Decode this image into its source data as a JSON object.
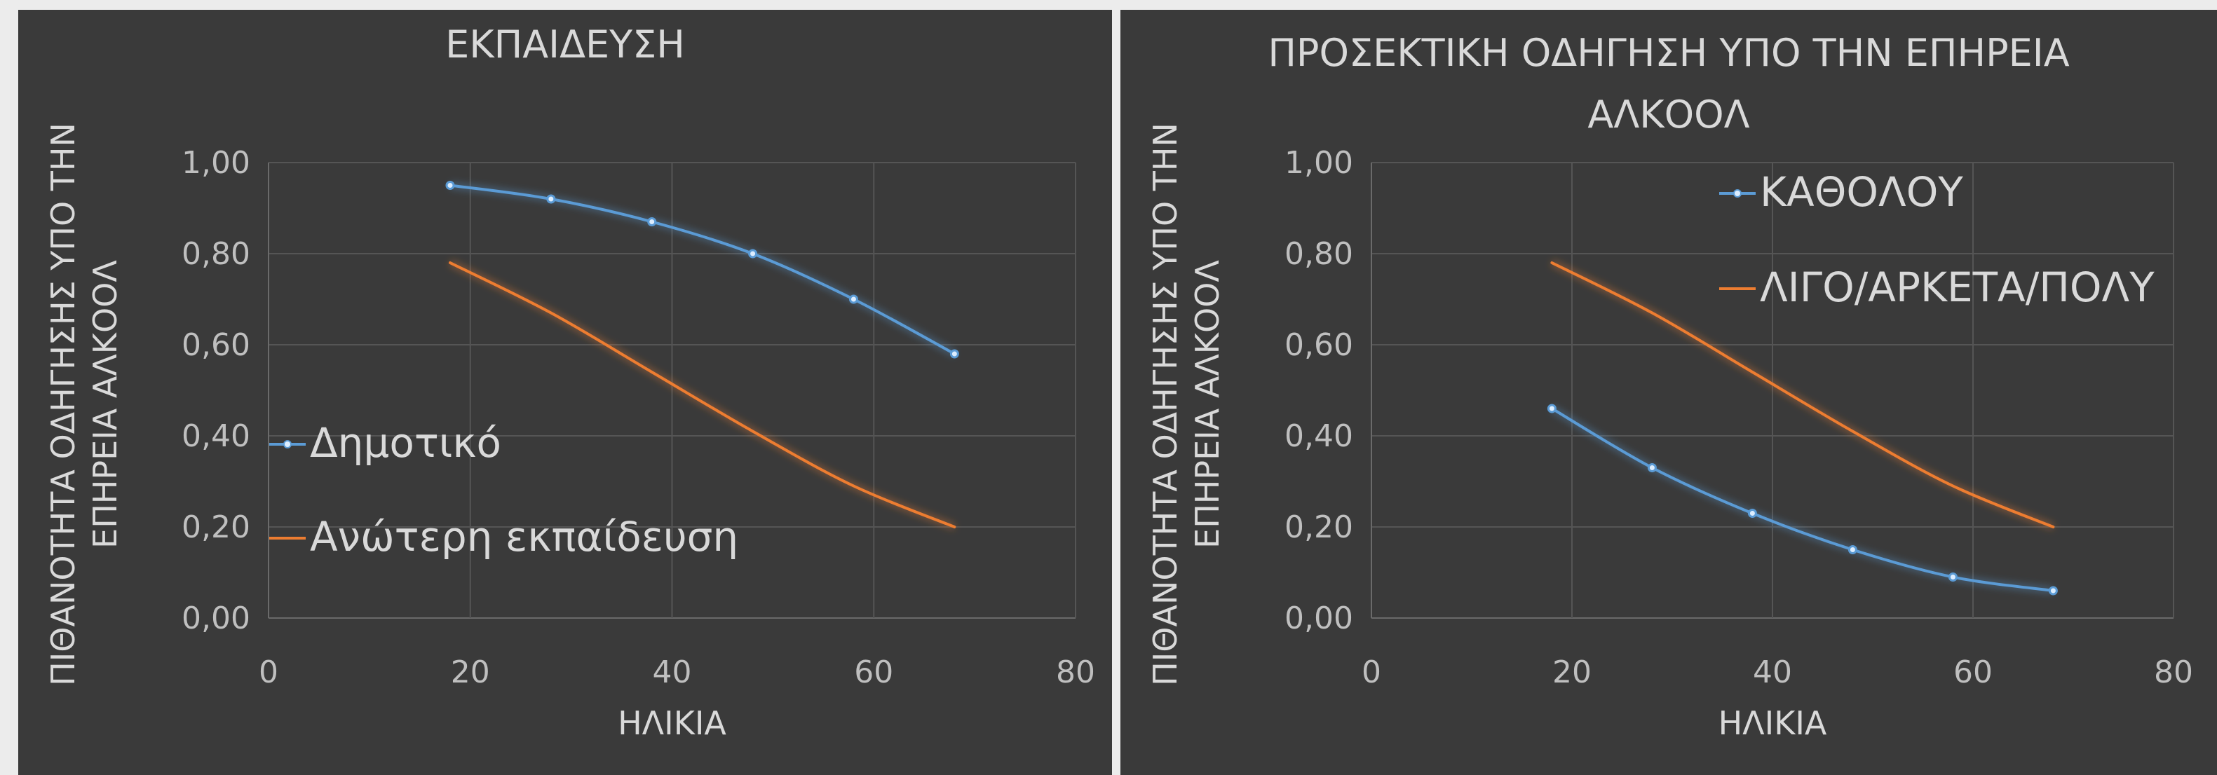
{
  "chart_data": [
    {
      "type": "line",
      "title": [
        "ΕΚΠΑΙΔΕΥΣΗ"
      ],
      "xlabel": "ΗΛΙΚΙΑ",
      "ylabel": [
        "ΠΙΘΑΝΟΤΗΤΑ ΟΔΗΓΗΣΗΣ ΥΠΟ ΤΗΝ",
        "ΕΠΗΡΕΙΑ ΑΛΚΟΟΛ"
      ],
      "xlim": [
        0,
        80
      ],
      "ylim": [
        0,
        1
      ],
      "xticks": [
        "0",
        "20",
        "40",
        "60",
        "80"
      ],
      "yticks": [
        "0,00",
        "0,20",
        "0,40",
        "0,60",
        "0,80",
        "1,00"
      ],
      "grid": true,
      "legend_position": "left",
      "x": [
        18,
        28,
        38,
        48,
        58,
        68
      ],
      "series": [
        {
          "name": "Δημοτικό",
          "color": "#5b9bd5",
          "markers": true,
          "values": [
            0.95,
            0.92,
            0.87,
            0.8,
            0.7,
            0.58
          ]
        },
        {
          "name": "Ανώτερη εκπαίδευση",
          "color": "#ed7d31",
          "markers": false,
          "values": [
            0.78,
            0.67,
            0.54,
            0.41,
            0.29,
            0.2
          ]
        }
      ]
    },
    {
      "type": "line",
      "title": [
        "ΠΡΟΣΕΚΤΙΚΗ ΟΔΗΓΗΣΗ ΥΠΟ ΤΗΝ ΕΠΗΡΕΙΑ",
        "ΑΛΚΟΟΛ"
      ],
      "xlabel": "ΗΛΙΚΙΑ",
      "ylabel": [
        "ΠΙΘΑΝΟΤΗΤΑ ΟΔΗΓΗΣΗΣ ΥΠΟ ΤΗΝ",
        "ΕΠΗΡΕΙΑ ΑΛΚΟΟΛ"
      ],
      "xlim": [
        0,
        80
      ],
      "ylim": [
        0,
        1
      ],
      "xticks": [
        "0",
        "20",
        "40",
        "60",
        "80"
      ],
      "yticks": [
        "0,00",
        "0,20",
        "0,40",
        "0,60",
        "0,80",
        "1,00"
      ],
      "grid": true,
      "legend_position": "top-right",
      "x": [
        18,
        28,
        38,
        48,
        58,
        68
      ],
      "series": [
        {
          "name": "ΚΑΘΟΛΟΥ",
          "color": "#5b9bd5",
          "markers": true,
          "values": [
            0.46,
            0.33,
            0.23,
            0.15,
            0.09,
            0.06
          ]
        },
        {
          "name": "ΛΙΓΟ/ΑΡΚΕΤΑ/ΠΟΛΥ",
          "color": "#ed7d31",
          "markers": false,
          "values": [
            0.78,
            0.67,
            0.54,
            0.41,
            0.29,
            0.2
          ]
        }
      ]
    }
  ]
}
